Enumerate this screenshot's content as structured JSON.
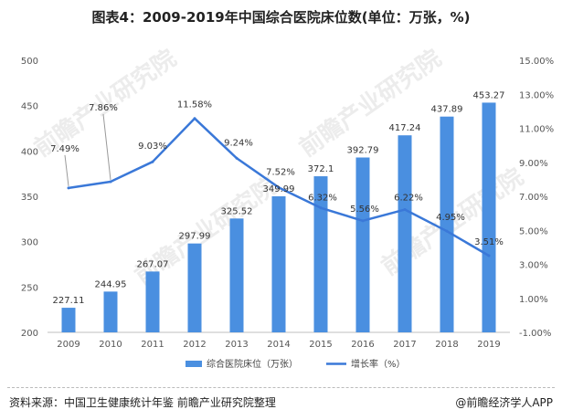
{
  "title": "图表4：2009-2019年中国综合医院床位数(单位：万张，%)",
  "source": "资料来源：中国卫生健康统计年鉴 前瞻产业研究院整理",
  "brand": "@前瞻经济学人APP",
  "watermark": "前瞻产业研究院",
  "chart_data": {
    "type": "bar",
    "categories": [
      "2009",
      "2010",
      "2011",
      "2012",
      "2013",
      "2014",
      "2015",
      "2016",
      "2017",
      "2018",
      "2019"
    ],
    "series": [
      {
        "name": "综合医院床位（万张）",
        "type": "bar",
        "axis": "left",
        "color": "#4a8fe0",
        "values": [
          227.11,
          244.95,
          267.07,
          297.99,
          325.52,
          349.99,
          372.1,
          392.79,
          417.24,
          437.89,
          453.27
        ],
        "labels": [
          "227.11",
          "244.95",
          "267.07",
          "297.99",
          "325.52",
          "349.99",
          "372.1",
          "392.79",
          "417.24",
          "437.89",
          "453.27"
        ]
      },
      {
        "name": "增长率（%）",
        "type": "line",
        "axis": "right",
        "color": "#3a78d8",
        "values": [
          7.49,
          7.86,
          9.03,
          11.58,
          9.24,
          7.52,
          6.32,
          5.56,
          6.22,
          4.95,
          3.51
        ],
        "labels": [
          "7.49%",
          "7.86%",
          "9.03%",
          "11.58%",
          "9.24%",
          "7.52%",
          "6.32%",
          "5.56%",
          "6.22%",
          "4.95%",
          "3.51%"
        ]
      }
    ],
    "y_left": {
      "range": [
        200,
        500
      ],
      "ticks": [
        "200",
        "250",
        "300",
        "350",
        "400",
        "450",
        "500"
      ]
    },
    "y_right": {
      "range": [
        -1,
        15
      ],
      "ticks": [
        "-1.00%",
        "1.00%",
        "3.00%",
        "5.00%",
        "7.00%",
        "9.00%",
        "11.00%",
        "13.00%",
        "15.00%"
      ]
    },
    "grid": false,
    "legend_position": "bottom"
  }
}
